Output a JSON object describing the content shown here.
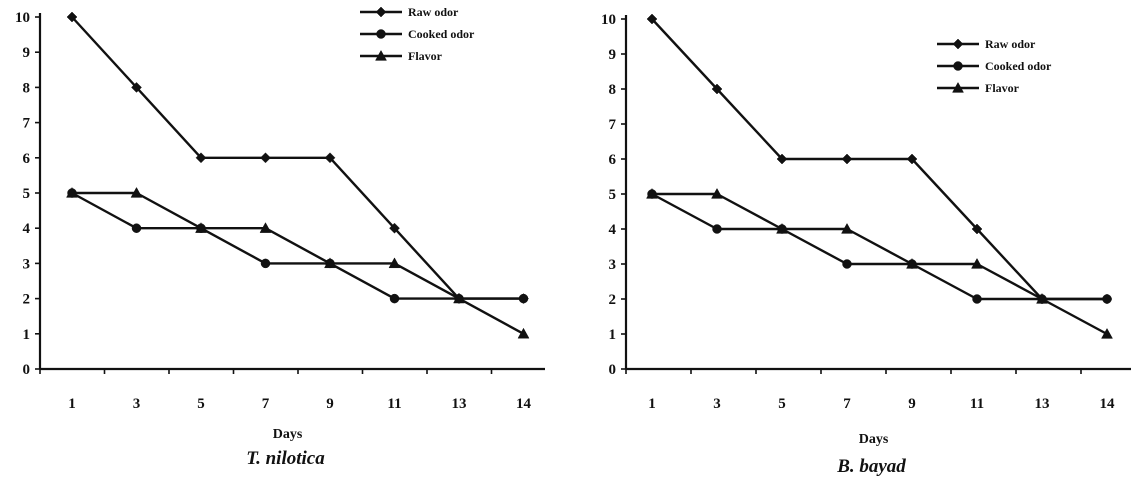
{
  "chart_data": [
    {
      "type": "line",
      "caption": "T. nilotica",
      "xlabel": "Days",
      "ylabel": "",
      "x": [
        1,
        3,
        5,
        7,
        9,
        11,
        13,
        14
      ],
      "x_tick_labels": [
        "1",
        "3",
        "5",
        "7",
        "9",
        "11",
        "13",
        "14"
      ],
      "ylim": [
        0,
        10
      ],
      "y_ticks": [
        0,
        1,
        2,
        3,
        4,
        5,
        6,
        7,
        8,
        9,
        10
      ],
      "grid": false,
      "legend_position": "top-right",
      "series": [
        {
          "name": "Raw odor",
          "marker": "diamond",
          "values": [
            10,
            8,
            6,
            6,
            6,
            4,
            2,
            2
          ]
        },
        {
          "name": "Cooked odor",
          "marker": "circle",
          "values": [
            5,
            4,
            4,
            3,
            3,
            2,
            2,
            2
          ]
        },
        {
          "name": "Flavor",
          "marker": "triangle",
          "values": [
            5,
            5,
            4,
            4,
            3,
            3,
            2,
            1
          ]
        }
      ]
    },
    {
      "type": "line",
      "caption": "B. bayad",
      "xlabel": "Days",
      "ylabel": "",
      "x": [
        1,
        3,
        5,
        7,
        9,
        11,
        13,
        14
      ],
      "x_tick_labels": [
        "1",
        "3",
        "5",
        "7",
        "9",
        "11",
        "13",
        "14"
      ],
      "ylim": [
        0,
        10
      ],
      "y_ticks": [
        0,
        1,
        2,
        3,
        4,
        5,
        6,
        7,
        8,
        9,
        10
      ],
      "grid": false,
      "legend_position": "top-right",
      "series": [
        {
          "name": "Raw odor",
          "marker": "diamond",
          "values": [
            10,
            8,
            6,
            6,
            6,
            4,
            2,
            2
          ]
        },
        {
          "name": "Cooked odor",
          "marker": "circle",
          "values": [
            5,
            4,
            4,
            3,
            3,
            2,
            2,
            2
          ]
        },
        {
          "name": "Flavor",
          "marker": "triangle",
          "values": [
            5,
            5,
            4,
            4,
            3,
            3,
            2,
            1
          ]
        }
      ]
    }
  ],
  "colors": {
    "ink": "#111111",
    "background": "#ffffff"
  }
}
